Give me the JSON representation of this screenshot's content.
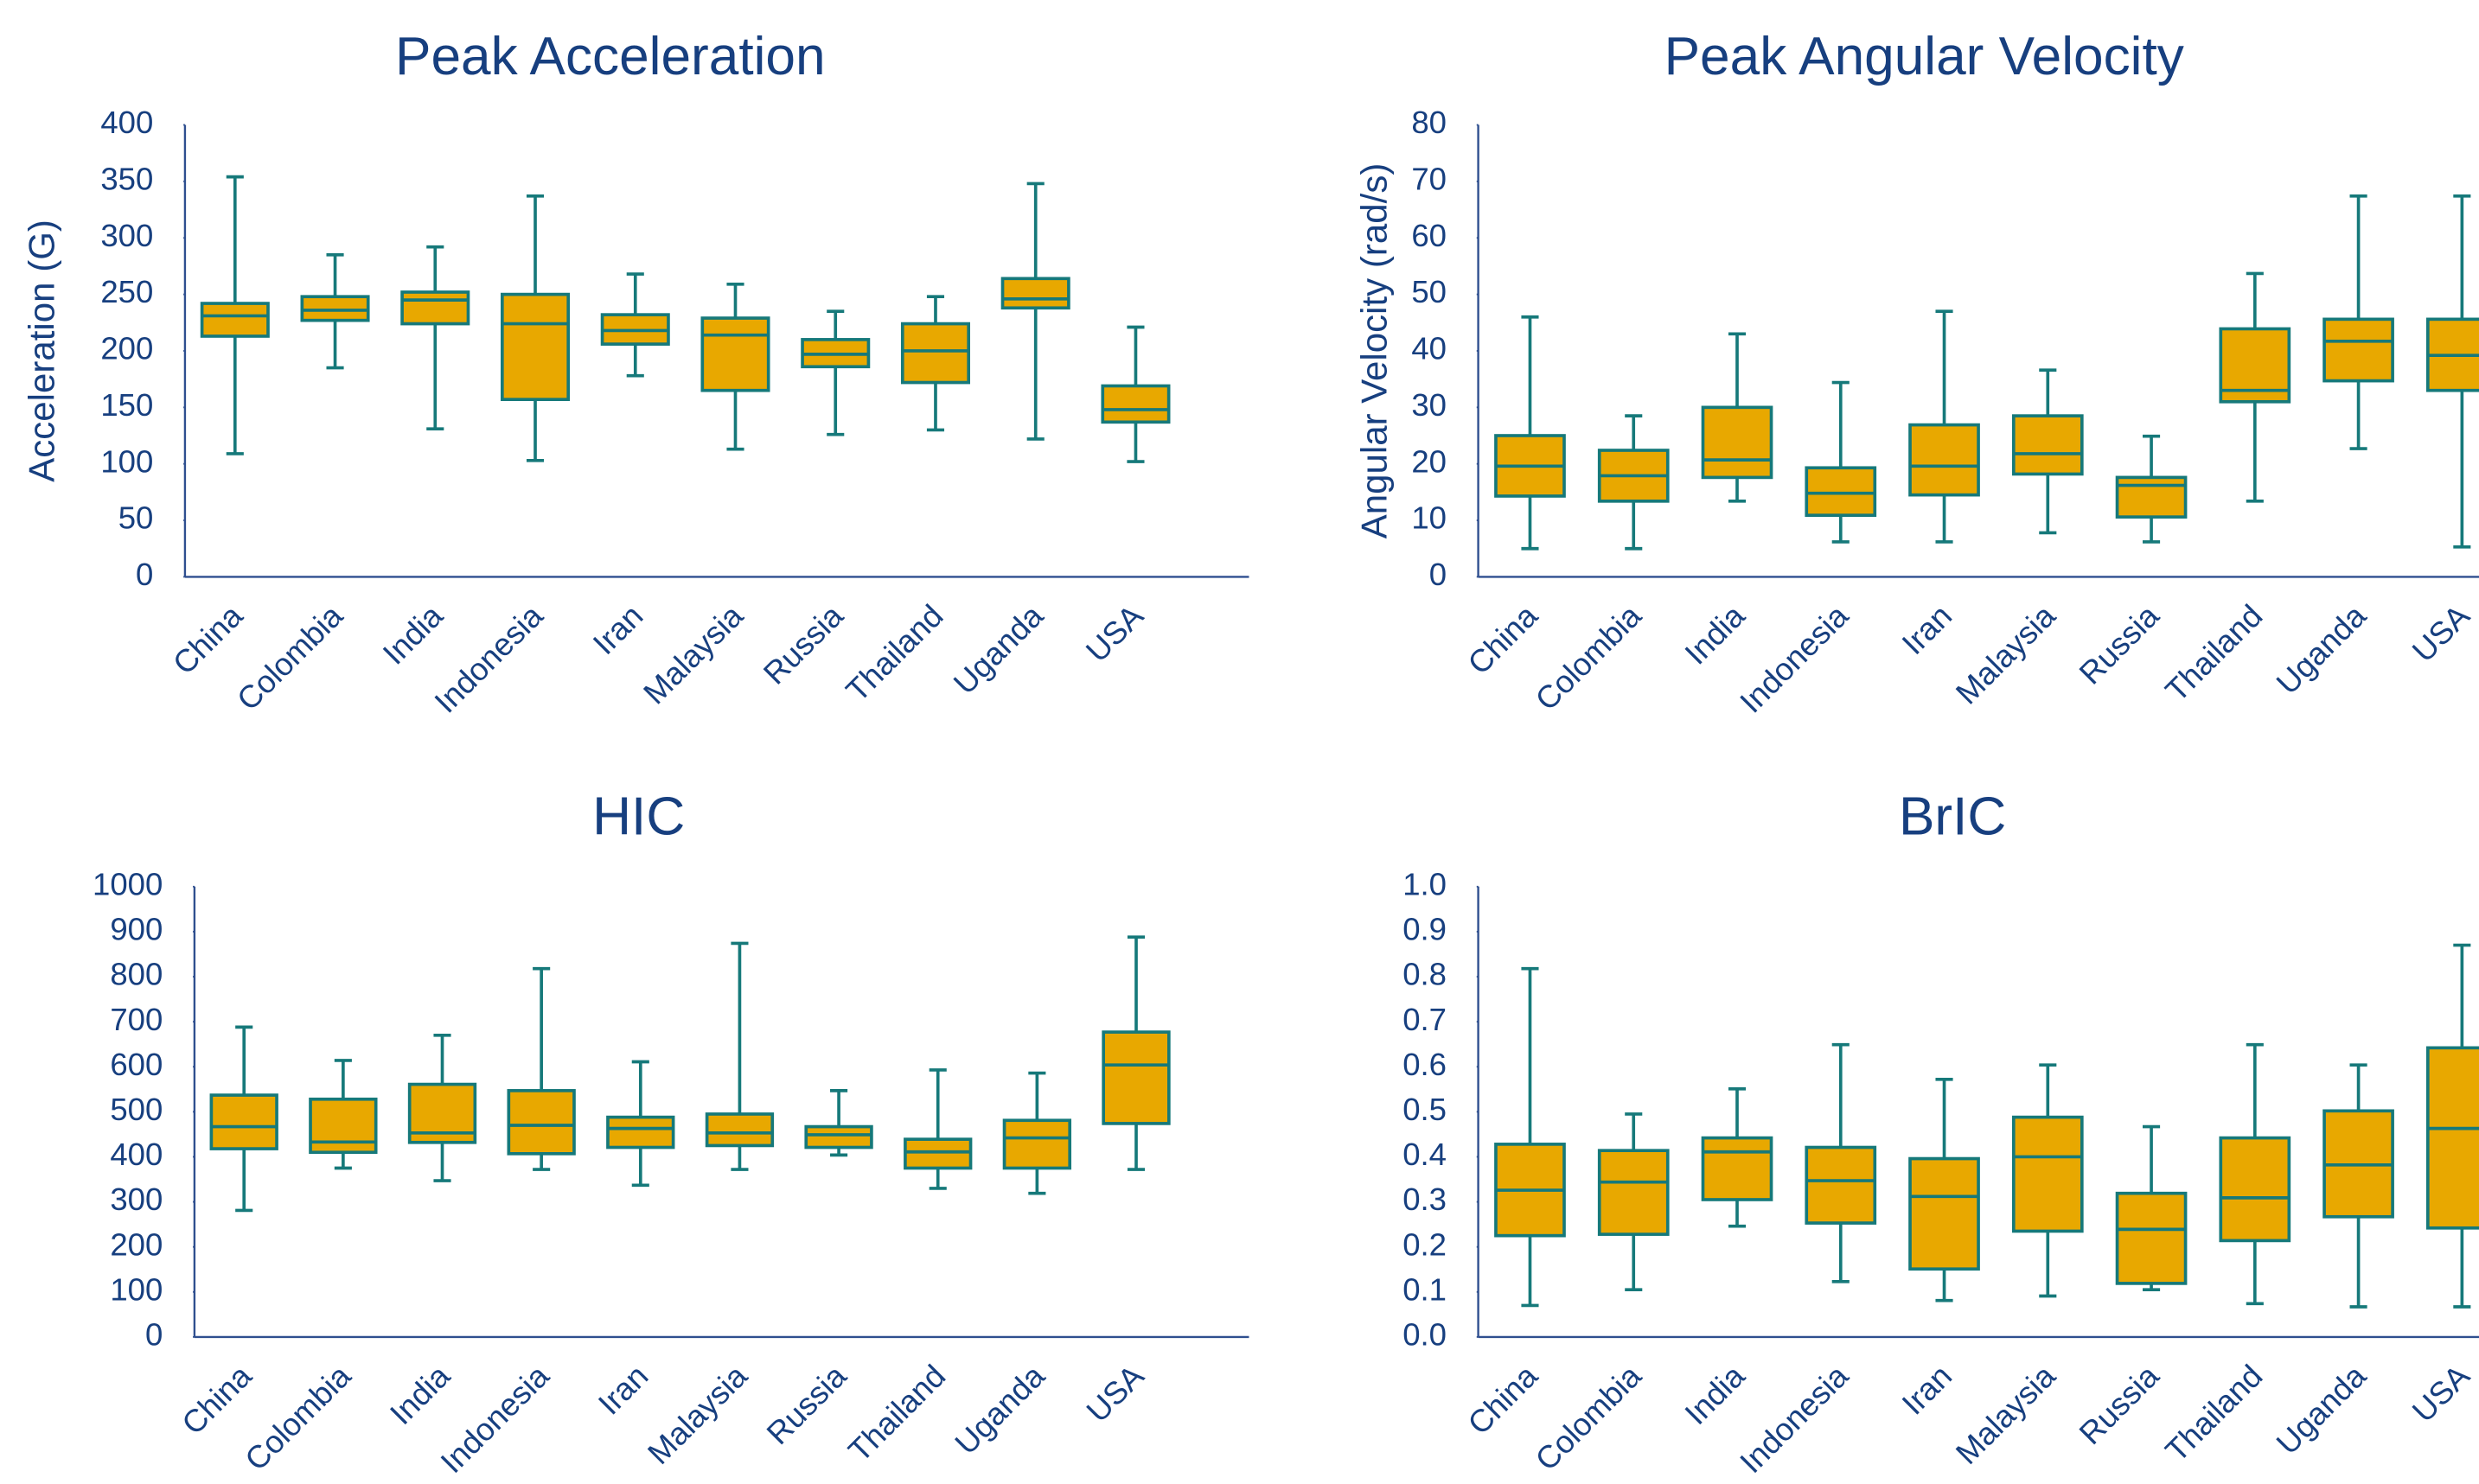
{
  "chart_data": [
    {
      "type": "box",
      "title": "Peak Acceleration",
      "ylabel": "Acceleration (G)",
      "color": "#e8a800",
      "edge_color": "#16797a",
      "categories": [
        "China",
        "Colombia",
        "India",
        "Indonesia",
        "Iran",
        "Malaysia",
        "Russia",
        "Thailand",
        "Uganda",
        "USA"
      ],
      "ylim": [
        0,
        400
      ],
      "yticks": [
        0,
        50,
        100,
        150,
        200,
        250,
        300,
        350,
        400
      ],
      "max": [
        354,
        285,
        292,
        337,
        268,
        259,
        235,
        248,
        348,
        221
      ],
      "q3": [
        242,
        248,
        252,
        250,
        232,
        229,
        210,
        224,
        264,
        169
      ],
      "median": [
        231,
        236,
        245,
        224,
        218,
        214,
        197,
        200,
        246,
        148
      ],
      "q1": [
        213,
        227,
        224,
        157,
        206,
        165,
        186,
        172,
        238,
        137
      ],
      "min": [
        109,
        185,
        131,
        103,
        178,
        113,
        126,
        130,
        122,
        102
      ]
    },
    {
      "type": "box",
      "title": "Peak Angular Velocity",
      "ylabel": "Angular Velocity (rad/s)",
      "color": "#e8a800",
      "edge_color": "#16797a",
      "categories": [
        "China",
        "Colombia",
        "India",
        "Indonesia",
        "Iran",
        "Malaysia",
        "Russia",
        "Thailand",
        "Uganda",
        "USA"
      ],
      "ylim": [
        0,
        80
      ],
      "yticks": [
        0,
        10,
        20,
        30,
        40,
        50,
        60,
        70,
        80
      ],
      "max": [
        46,
        28.5,
        43,
        34.4,
        47,
        36.6,
        24.9,
        53.7,
        67.4,
        67.4
      ],
      "q3": [
        25,
        22.4,
        30,
        19.3,
        26.9,
        28.5,
        17.6,
        43.9,
        45.6,
        45.6
      ],
      "median": [
        19.6,
        17.9,
        20.7,
        14.8,
        19.6,
        21.8,
        16.2,
        33,
        41.7,
        39.2
      ],
      "q1": [
        14.3,
        13.4,
        17.6,
        10.9,
        14.5,
        18.2,
        10.6,
        31,
        34.7,
        33
      ],
      "min": [
        5,
        5,
        13.4,
        6.2,
        6.2,
        7.8,
        6.2,
        13.4,
        22.7,
        5.3
      ]
    },
    {
      "type": "box",
      "title": "HIC",
      "color": "#e8a800",
      "edge_color": "#16797a",
      "categories": [
        "China",
        "Colombia",
        "India",
        "Indonesia",
        "Iran",
        "Malaysia",
        "Russia",
        "Thailand",
        "Uganda",
        "USA"
      ],
      "ylim": [
        0,
        1000
      ],
      "yticks": [
        0,
        100,
        200,
        300,
        400,
        500,
        600,
        700,
        800,
        900,
        1000
      ],
      "max": [
        688,
        614,
        670,
        818,
        611,
        874,
        547,
        593,
        586,
        888
      ],
      "q3": [
        537,
        528,
        561,
        547,
        488,
        495,
        467,
        439,
        481,
        677
      ],
      "median": [
        467,
        433,
        453,
        470,
        463,
        453,
        449,
        411,
        442,
        604
      ],
      "q1": [
        418,
        410,
        432,
        407,
        421,
        425,
        421,
        375,
        375,
        474
      ],
      "min": [
        281,
        375,
        347,
        372,
        337,
        372,
        404,
        330,
        319,
        372
      ]
    },
    {
      "type": "box",
      "title": "BrIC",
      "color": "#e8a800",
      "edge_color": "#16797a",
      "categories": [
        "China",
        "Colombia",
        "India",
        "Indonesia",
        "Iran",
        "Malaysia",
        "Russia",
        "Thailand",
        "Uganda",
        "USA"
      ],
      "ylim": [
        0,
        1
      ],
      "yticks": [
        {
          "value": 0,
          "label": "0.0"
        },
        0.1,
        0.2,
        0.3,
        0.4,
        0.5,
        0.6,
        0.7,
        0.8,
        0.9,
        {
          "value": 1,
          "label": "1.0"
        }
      ],
      "max": [
        0.818,
        0.495,
        0.551,
        0.649,
        0.572,
        0.604,
        0.467,
        0.649,
        0.604,
        0.87
      ],
      "q3": [
        0.428,
        0.414,
        0.442,
        0.421,
        0.396,
        0.488,
        0.319,
        0.442,
        0.502,
        0.642
      ],
      "median": [
        0.326,
        0.344,
        0.411,
        0.347,
        0.312,
        0.4,
        0.239,
        0.309,
        0.382,
        0.463
      ],
      "q1": [
        0.225,
        0.228,
        0.305,
        0.253,
        0.151,
        0.235,
        0.119,
        0.214,
        0.267,
        0.242
      ],
      "min": [
        0.07,
        0.105,
        0.246,
        0.123,
        0.081,
        0.091,
        0.105,
        0.074,
        0.067,
        0.067
      ]
    }
  ]
}
